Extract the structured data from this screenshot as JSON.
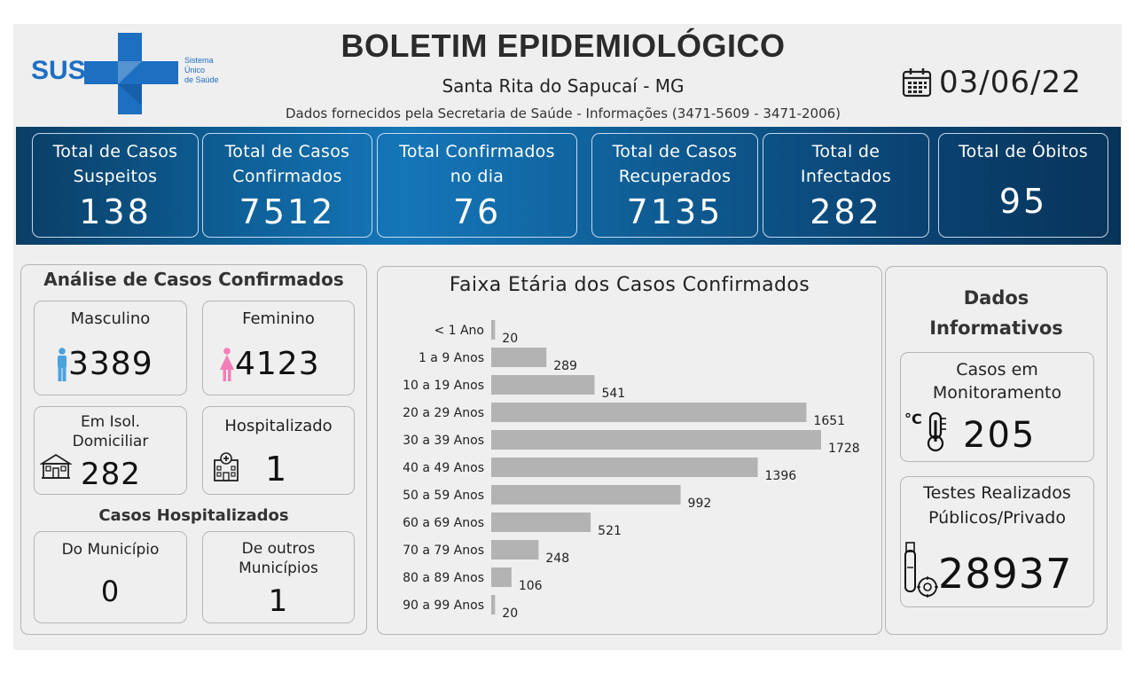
{
  "header": {
    "brand": "SUS",
    "brand_sub": [
      "Sistema",
      "Único",
      "de Saúde"
    ],
    "title": "BOLETIM EPIDEMIOLÓGICO",
    "subtitle": "Santa Rita do Sapucaí - MG",
    "source": "Dados fornecidos pela Secretaria de Saúde - Informações (3471-5609 - 3471-2006)",
    "date": "03/06/22"
  },
  "kpis": [
    {
      "label_l1": "Total de Casos",
      "label_l2": "Suspeitos",
      "value": "138"
    },
    {
      "label_l1": "Total de Casos",
      "label_l2": "Confirmados",
      "value": "7512"
    },
    {
      "label_l1": "Total Confirmados",
      "label_l2": "no dia",
      "value": "76"
    },
    {
      "label_l1": "Total de Casos",
      "label_l2": "Recuperados",
      "value": "7135"
    },
    {
      "label_l1": "Total de",
      "label_l2": "Infectados",
      "value": "282"
    },
    {
      "label_l1": "Total de Óbitos",
      "label_l2": "",
      "value": "95"
    }
  ],
  "analysis": {
    "title": "Análise de Casos Confirmados",
    "male": {
      "label": "Masculino",
      "value": "3389"
    },
    "female": {
      "label": "Feminino",
      "value": "4123"
    },
    "home_isolation": {
      "label_l1": "Em Isol.",
      "label_l2": "Domiciliar",
      "value": "282"
    },
    "hospitalized": {
      "label": "Hospitalizado",
      "value": "1"
    },
    "hosp_title": "Casos Hospitalizados",
    "municipality": {
      "label": "Do Município",
      "value": "0"
    },
    "other_municipalities": {
      "label_l1": "De outros",
      "label_l2": "Municípios",
      "value": "1"
    }
  },
  "chart_data": {
    "type": "bar",
    "orientation": "horizontal",
    "title": "Faixa Etária dos Casos Confirmados",
    "categories": [
      "< 1 Ano",
      "1 a 9 Anos",
      "10 a 19 Anos",
      "20 a 29 Anos",
      "30 a 39 Anos",
      "40 a 49 Anos",
      "50 a 59 Anos",
      "60 a 69 Anos",
      "70 a 79 Anos",
      "80 a 89 Anos",
      "90 a 99 Anos"
    ],
    "values": [
      20,
      289,
      541,
      1651,
      1728,
      1396,
      992,
      521,
      248,
      106,
      20
    ],
    "bar_color": "#b3b3b3",
    "data_labels": true,
    "grid": false
  },
  "info": {
    "title_l1": "Dados",
    "title_l2": "Informativos",
    "monitoring": {
      "label_l1": "Casos em",
      "label_l2": "Monitoramento",
      "value": "205"
    },
    "tests": {
      "label_l1": "Testes Realizados",
      "label_l2": "Públicos/Privado",
      "value": "28937"
    }
  },
  "icons": {
    "date": "calendar-icon",
    "male": "male-person-icon",
    "female": "female-person-icon",
    "home": "house-icon",
    "hospital": "hospital-icon",
    "monitoring": "thermometer-icon",
    "tests": "test-tube-virus-icon"
  },
  "colors": {
    "band_dark": "#073459",
    "band_light": "#1576b8",
    "sus_blue": "#1d6fc2",
    "male": "#4aa3df",
    "female": "#f27fb8",
    "bar": "#b3b3b3"
  }
}
